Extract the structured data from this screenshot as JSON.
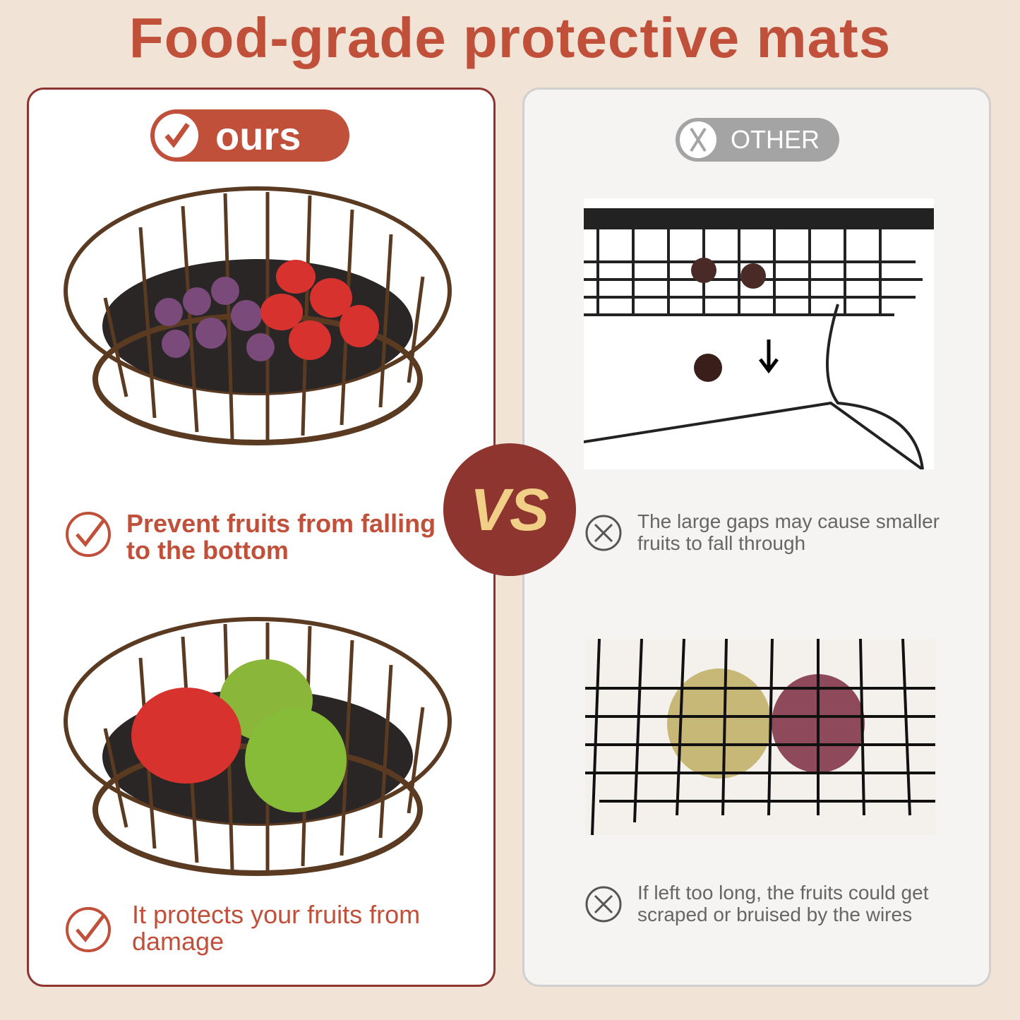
{
  "title": "Food-grade protective mats",
  "ours": {
    "badge": "ours",
    "features": [
      "Prevent fruits from falling to the bottom",
      "It protects your fruits from damage"
    ]
  },
  "other": {
    "badge": "OTHER",
    "features": [
      "The large gaps may cause smaller fruits to fall through",
      "If left too long, the fruits could get scraped or bruised by the wires"
    ]
  },
  "vs": "VS",
  "colors": {
    "accent": "#c0503a",
    "dark_red": "#8e3530",
    "gold": "#f2cf86",
    "grey": "#a4a4a4"
  }
}
